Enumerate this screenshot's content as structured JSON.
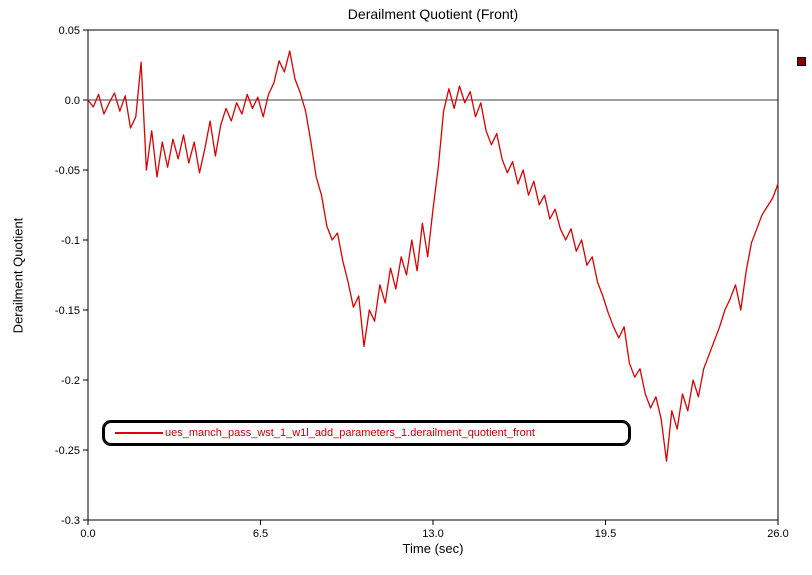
{
  "chart": {
    "title": "Derailment Quotient (Front)",
    "xlabel": "Time (sec)",
    "ylabel": "Derailment Quotient"
  },
  "legend": {
    "label": "ues_manch_pass_wst_1_w1l_add_parameters_1.derailment_quotient_front"
  },
  "colors": {
    "line": "#dd0000",
    "axis": "#000000",
    "background": "#ffffff",
    "legend_text": "#cc0000"
  },
  "chart_data": {
    "type": "line",
    "title": "Derailment Quotient (Front)",
    "xlabel": "Time (sec)",
    "ylabel": "Derailment Quotient",
    "xlim": [
      0,
      26
    ],
    "ylim": [
      -0.3,
      0.05
    ],
    "xticks": [
      0.0,
      6.5,
      13.0,
      19.5,
      26.0
    ],
    "xtick_labels": [
      "0.0",
      "6.5",
      "13.0",
      "19.5",
      "26.0"
    ],
    "yticks": [
      0.05,
      0.0,
      -0.05,
      -0.1,
      -0.15,
      -0.2,
      -0.25,
      -0.3
    ],
    "ytick_labels": [
      "0.05",
      "0.0",
      "-0.05",
      "-0.1",
      "-0.15",
      "-0.2",
      "-0.25",
      "-0.3"
    ],
    "grid": false,
    "zero_line": true,
    "legend_position": "bottom-left-inside",
    "series": [
      {
        "name": "ues_manch_pass_wst_1_w1l_add_parameters_1.derailment_quotient_front",
        "color": "#dd0000",
        "x": [
          0,
          0.2,
          0.4,
          0.6,
          0.8,
          1,
          1.2,
          1.4,
          1.6,
          1.8,
          2,
          2.2,
          2.4,
          2.6,
          2.8,
          3,
          3.2,
          3.4,
          3.6,
          3.8,
          4,
          4.2,
          4.4,
          4.6,
          4.8,
          5,
          5.2,
          5.4,
          5.6,
          5.8,
          6,
          6.2,
          6.4,
          6.6,
          6.8,
          7,
          7.2,
          7.4,
          7.6,
          7.8,
          8,
          8.2,
          8.4,
          8.6,
          8.8,
          9,
          9.2,
          9.4,
          9.6,
          9.8,
          10,
          10.2,
          10.4,
          10.6,
          10.8,
          11,
          11.2,
          11.4,
          11.6,
          11.8,
          12,
          12.2,
          12.4,
          12.6,
          12.8,
          13,
          13.2,
          13.4,
          13.6,
          13.8,
          14,
          14.2,
          14.4,
          14.6,
          14.8,
          15,
          15.2,
          15.4,
          15.6,
          15.8,
          16,
          16.2,
          16.4,
          16.6,
          16.8,
          17,
          17.2,
          17.4,
          17.6,
          17.8,
          18,
          18.2,
          18.4,
          18.6,
          18.8,
          19,
          19.2,
          19.4,
          19.6,
          19.8,
          20,
          20.2,
          20.4,
          20.6,
          20.8,
          21,
          21.2,
          21.4,
          21.6,
          21.8,
          22,
          22.2,
          22.4,
          22.6,
          22.8,
          23,
          23.2,
          23.4,
          23.6,
          23.8,
          24,
          24.2,
          24.4,
          24.6,
          24.8,
          25,
          25.2,
          25.4,
          25.6,
          25.8,
          26
        ],
        "y": [
          0,
          -0.005,
          0.004,
          -0.01,
          -0.002,
          0.005,
          -0.008,
          0.003,
          -0.02,
          -0.012,
          0.027,
          -0.05,
          -0.022,
          -0.055,
          -0.03,
          -0.048,
          -0.028,
          -0.042,
          -0.025,
          -0.045,
          -0.03,
          -0.052,
          -0.035,
          -0.015,
          -0.04,
          -0.018,
          -0.006,
          -0.015,
          -0.002,
          -0.01,
          0.004,
          -0.006,
          0.002,
          -0.012,
          0.004,
          0.012,
          0.028,
          0.02,
          0.035,
          0.015,
          0.005,
          -0.008,
          -0.03,
          -0.055,
          -0.068,
          -0.09,
          -0.1,
          -0.095,
          -0.115,
          -0.13,
          -0.148,
          -0.14,
          -0.176,
          -0.15,
          -0.158,
          -0.132,
          -0.145,
          -0.12,
          -0.135,
          -0.112,
          -0.125,
          -0.1,
          -0.122,
          -0.088,
          -0.112,
          -0.078,
          -0.048,
          -0.008,
          0.008,
          -0.006,
          0.01,
          -0.002,
          0.006,
          -0.012,
          -0.002,
          -0.022,
          -0.032,
          -0.024,
          -0.042,
          -0.052,
          -0.044,
          -0.06,
          -0.05,
          -0.068,
          -0.058,
          -0.075,
          -0.068,
          -0.085,
          -0.078,
          -0.092,
          -0.1,
          -0.092,
          -0.108,
          -0.1,
          -0.118,
          -0.112,
          -0.13,
          -0.14,
          -0.152,
          -0.162,
          -0.17,
          -0.162,
          -0.188,
          -0.198,
          -0.192,
          -0.21,
          -0.22,
          -0.212,
          -0.228,
          -0.258,
          -0.222,
          -0.235,
          -0.21,
          -0.222,
          -0.2,
          -0.212,
          -0.192,
          -0.182,
          -0.172,
          -0.162,
          -0.15,
          -0.142,
          -0.132,
          -0.15,
          -0.122,
          -0.102,
          -0.092,
          -0.082,
          -0.076,
          -0.07,
          -0.06
        ]
      }
    ]
  }
}
